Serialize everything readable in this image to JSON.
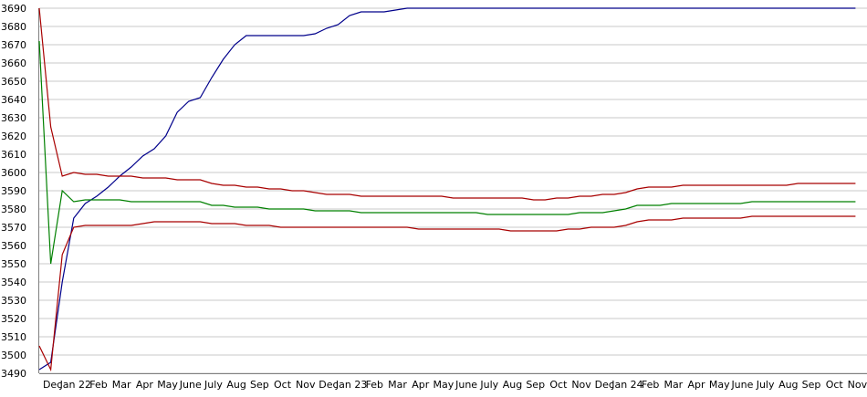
{
  "chart_data": {
    "type": "line",
    "categories": [
      null,
      "Dec",
      null,
      "Jan 22",
      null,
      "Feb",
      null,
      "Mar",
      null,
      "Apr",
      null,
      "May",
      null,
      "June",
      null,
      "July",
      null,
      "Aug",
      null,
      "Sep",
      null,
      "Oct",
      null,
      "Nov",
      null,
      "Dec",
      null,
      "Jan 23",
      null,
      "Feb",
      null,
      "Mar",
      null,
      "Apr",
      null,
      "May",
      null,
      "June",
      null,
      "July",
      null,
      "Aug",
      null,
      "Sep",
      null,
      "Oct",
      null,
      "Nov",
      null,
      "Dec",
      null,
      "Jan 24",
      null,
      "Feb",
      null,
      "Mar",
      null,
      "Apr",
      null,
      "May",
      null,
      "June",
      null,
      "July",
      null,
      "Aug",
      null,
      "Sep",
      null,
      "Oct",
      null,
      "Nov"
    ],
    "series": [
      {
        "color": "#00008b",
        "values": [
          3492,
          3496,
          3540,
          3575,
          3583,
          3587,
          3592,
          3598,
          3603,
          3609,
          3613,
          3620,
          3633,
          3639,
          3641,
          3652,
          3662,
          3670,
          3675,
          3675,
          3675,
          3675,
          3675,
          3675,
          3676,
          3679,
          3681,
          3686,
          3688,
          3688,
          3688,
          3689,
          3690,
          3690,
          3690,
          3690,
          3690,
          3690,
          3690,
          3690,
          3690,
          3690,
          3690,
          3690,
          3690,
          3690,
          3690,
          3690,
          3690,
          3690,
          3690,
          3690,
          3690,
          3690,
          3690,
          3690,
          3690,
          3690,
          3690,
          3690,
          3690,
          3690,
          3690,
          3690,
          3690,
          3690,
          3690,
          3690,
          3690,
          3690,
          3690,
          3690
        ]
      },
      {
        "color": "#008000",
        "values": [
          3672,
          3550,
          3590,
          3584,
          3585,
          3585,
          3585,
          3585,
          3584,
          3584,
          3584,
          3584,
          3584,
          3584,
          3584,
          3582,
          3582,
          3581,
          3581,
          3581,
          3580,
          3580,
          3580,
          3580,
          3579,
          3579,
          3579,
          3579,
          3578,
          3578,
          3578,
          3578,
          3578,
          3578,
          3578,
          3578,
          3578,
          3578,
          3578,
          3577,
          3577,
          3577,
          3577,
          3577,
          3577,
          3577,
          3577,
          3578,
          3578,
          3578,
          3579,
          3580,
          3582,
          3582,
          3582,
          3583,
          3583,
          3583,
          3583,
          3583,
          3583,
          3583,
          3584,
          3584,
          3584,
          3584,
          3584,
          3584,
          3584,
          3584,
          3584,
          3584
        ]
      },
      {
        "color": "#a80000",
        "values": [
          3690,
          3625,
          3598,
          3600,
          3599,
          3599,
          3598,
          3598,
          3598,
          3597,
          3597,
          3597,
          3596,
          3596,
          3596,
          3594,
          3593,
          3593,
          3592,
          3592,
          3591,
          3591,
          3590,
          3590,
          3589,
          3588,
          3588,
          3588,
          3587,
          3587,
          3587,
          3587,
          3587,
          3587,
          3587,
          3587,
          3586,
          3586,
          3586,
          3586,
          3586,
          3586,
          3586,
          3585,
          3585,
          3586,
          3586,
          3587,
          3587,
          3588,
          3588,
          3589,
          3591,
          3592,
          3592,
          3592,
          3593,
          3593,
          3593,
          3593,
          3593,
          3593,
          3593,
          3593,
          3593,
          3593,
          3594,
          3594,
          3594,
          3594,
          3594,
          3594
        ]
      },
      {
        "color": "#a80000",
        "values": [
          3505,
          3492,
          3555,
          3570,
          3571,
          3571,
          3571,
          3571,
          3571,
          3572,
          3573,
          3573,
          3573,
          3573,
          3573,
          3572,
          3572,
          3572,
          3571,
          3571,
          3571,
          3570,
          3570,
          3570,
          3570,
          3570,
          3570,
          3570,
          3570,
          3570,
          3570,
          3570,
          3570,
          3569,
          3569,
          3569,
          3569,
          3569,
          3569,
          3569,
          3569,
          3568,
          3568,
          3568,
          3568,
          3568,
          3569,
          3569,
          3570,
          3570,
          3570,
          3571,
          3573,
          3574,
          3574,
          3574,
          3575,
          3575,
          3575,
          3575,
          3575,
          3575,
          3576,
          3576,
          3576,
          3576,
          3576,
          3576,
          3576,
          3576,
          3576,
          3576
        ]
      }
    ],
    "ylim": [
      3490,
      3690
    ],
    "yticks": [
      3490,
      3500,
      3510,
      3520,
      3530,
      3540,
      3550,
      3560,
      3570,
      3580,
      3590,
      3600,
      3610,
      3620,
      3630,
      3640,
      3650,
      3660,
      3670,
      3680,
      3690
    ],
    "grid": true
  }
}
